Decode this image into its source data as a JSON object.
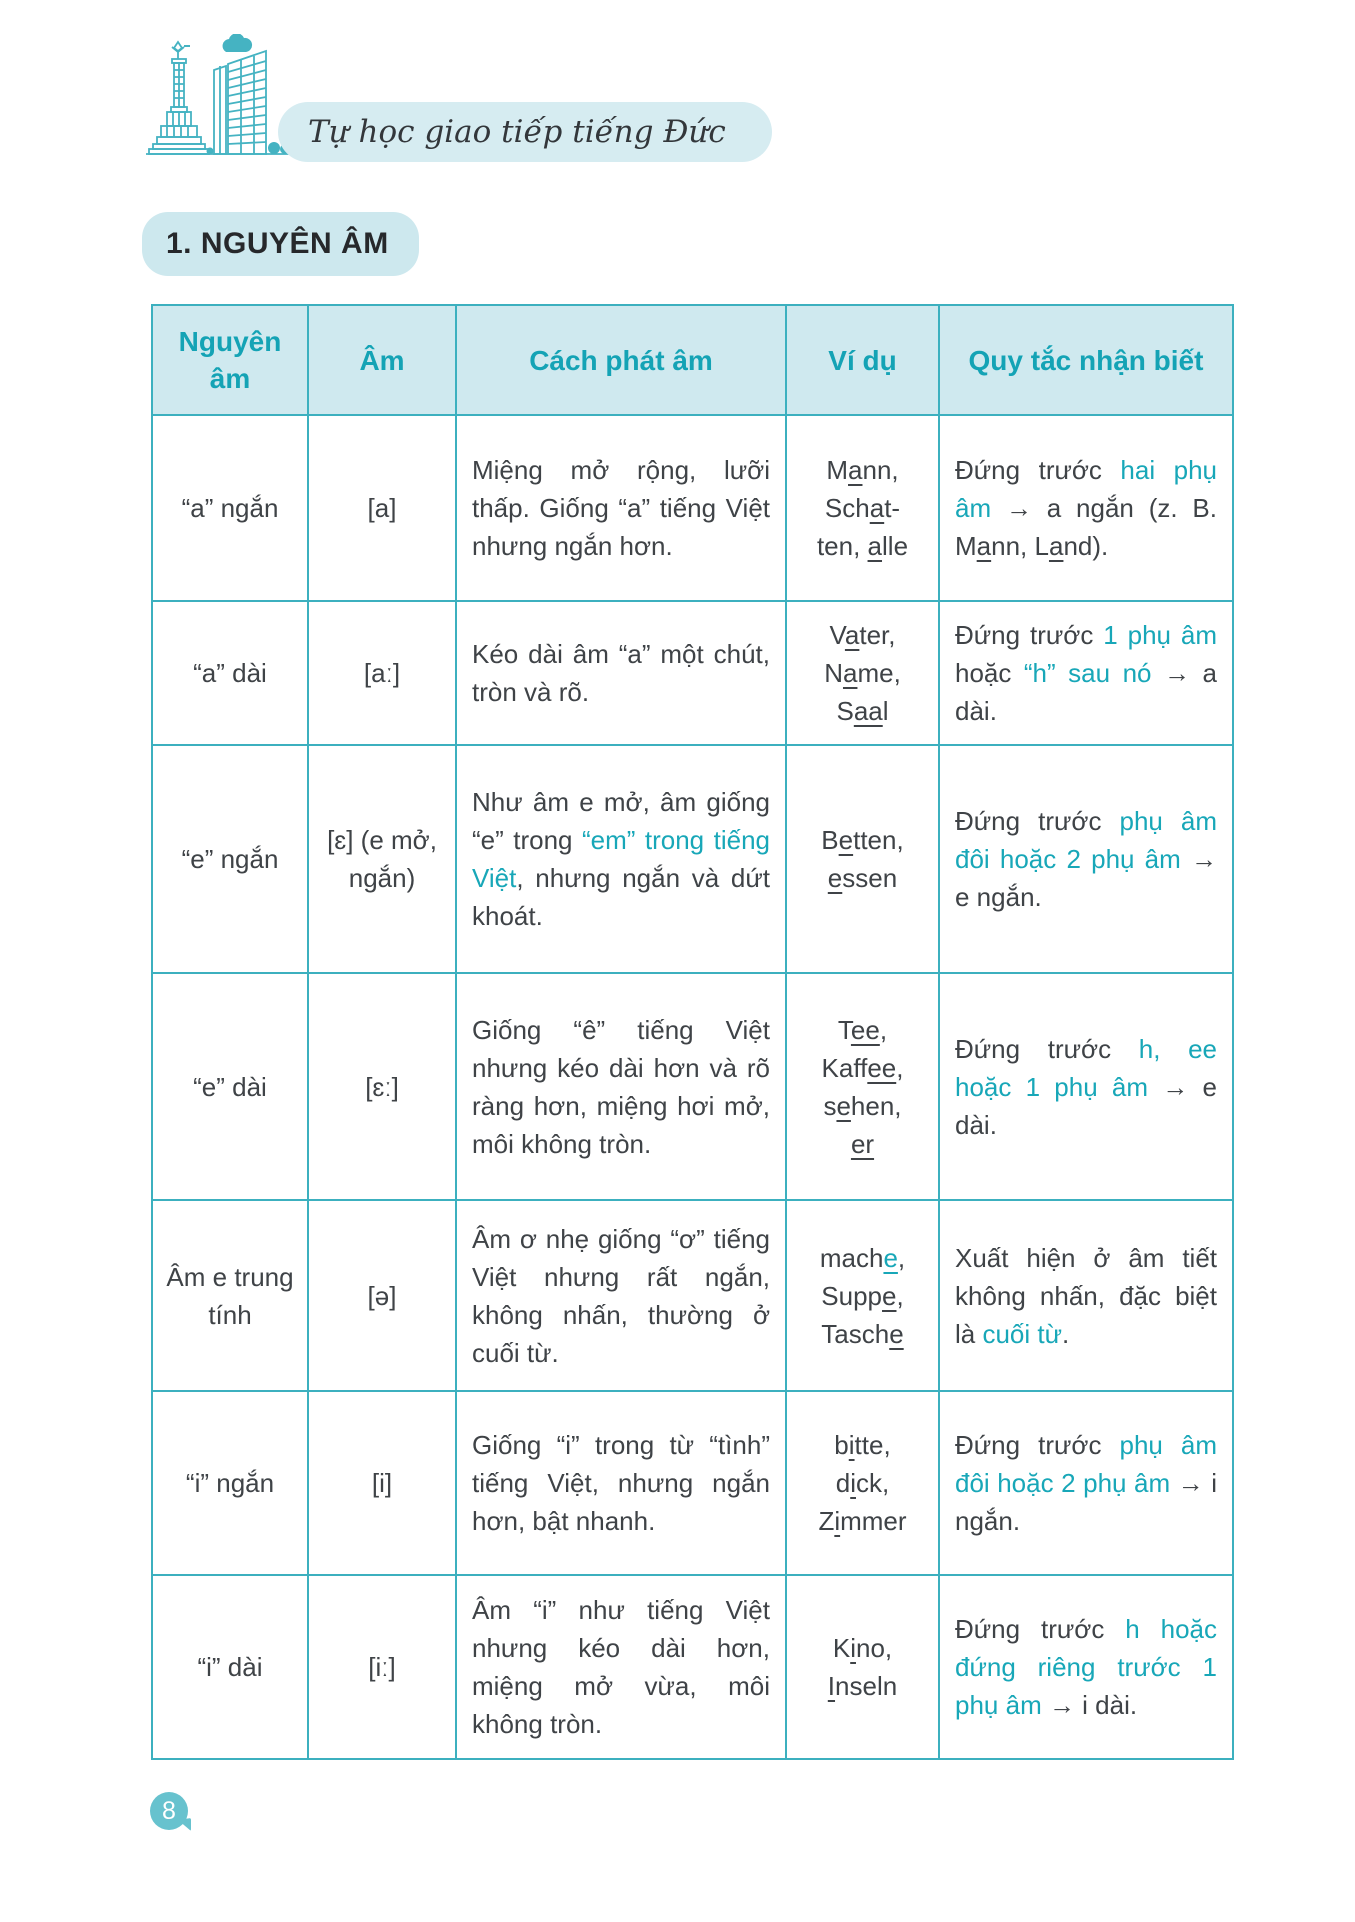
{
  "page": {
    "book_title": "Tự học giao tiếp tiếng Đức",
    "section_heading": "1. NGUYÊN ÂM",
    "page_number": "8"
  },
  "colors": {
    "accent_teal": "#18a7b8",
    "border_teal": "#3cb0bf",
    "header_bg": "#cfe9ef",
    "pill_bg": "#d6ecf1",
    "text_dark": "#3f4347",
    "ipa_gray": "#8f9396",
    "badge_bg": "#67c2ce"
  },
  "illustration": {
    "description": "berlin-victory-column-building-cloud",
    "stroke_color": "#45b3c2"
  },
  "table": {
    "columns": [
      "Nguyên âm",
      "Âm",
      "Cách phát âm",
      "Ví dụ",
      "Quy tắc nhận biết"
    ],
    "rows": [
      {
        "vowel": "“a” ngắn",
        "sound": [
          "[a]"
        ],
        "pronunciation": [
          [
            "Miệng mở rộng, lưỡi thấp. Giống “a” tiếng Việt nhưng ngắn hơn.",
            ""
          ]
        ],
        "examples": [
          [
            [
              "M",
              ""
            ],
            [
              "a",
              "u"
            ],
            [
              "nn,",
              ""
            ]
          ],
          [
            [
              "Sch",
              ""
            ],
            [
              "a",
              "u"
            ],
            [
              "t-",
              ""
            ]
          ],
          [
            [
              "ten, ",
              ""
            ],
            [
              "a",
              "u"
            ],
            [
              "lle",
              ""
            ]
          ]
        ],
        "rule": [
          [
            "Đứng trước ",
            ""
          ],
          [
            "hai phụ âm",
            "teal"
          ],
          [
            " → a ngắn (z. B. M",
            ""
          ],
          [
            "a",
            "u"
          ],
          [
            "nn, L",
            ""
          ],
          [
            "a",
            "u"
          ],
          [
            "nd).",
            ""
          ]
        ]
      },
      {
        "vowel": "“a” dài",
        "sound": [
          "[aː]"
        ],
        "pronunciation": [
          [
            "Kéo dài âm “a” một chút, tròn và rõ.",
            ""
          ]
        ],
        "examples": [
          [
            [
              "V",
              ""
            ],
            [
              "a",
              "u"
            ],
            [
              "ter,",
              ""
            ]
          ],
          [
            [
              "N",
              ""
            ],
            [
              "a",
              "u"
            ],
            [
              "me,",
              ""
            ]
          ],
          [
            [
              "S",
              ""
            ],
            [
              "aa",
              "u"
            ],
            [
              "l",
              ""
            ]
          ]
        ],
        "rule": [
          [
            "Đứng trước ",
            ""
          ],
          [
            "1 phụ âm",
            "teal"
          ],
          [
            " hoặc ",
            ""
          ],
          [
            "“h” sau nó",
            "teal"
          ],
          [
            " → a dài.",
            ""
          ]
        ]
      },
      {
        "vowel": "“e” ngắn",
        "sound": [
          "[ɛ] (e mở,",
          "ngắn)"
        ],
        "pronunciation": [
          [
            "Như âm e mở, âm giống “e” trong ",
            ""
          ],
          [
            "“em” trong tiếng Việt",
            "teal"
          ],
          [
            ", nhưng ngắn và dứt khoát.",
            ""
          ]
        ],
        "examples": [
          [
            [
              "B",
              ""
            ],
            [
              "e",
              "u"
            ],
            [
              "tten,",
              ""
            ]
          ],
          [
            [
              "e",
              "u"
            ],
            [
              "ssen",
              ""
            ]
          ]
        ],
        "rule": [
          [
            "Đứng trước ",
            ""
          ],
          [
            "phụ âm đôi hoặc 2 phụ âm",
            "teal"
          ],
          [
            " → e ngắn.",
            ""
          ]
        ]
      },
      {
        "vowel": "“e” dài",
        "sound": [
          "[ɛː]"
        ],
        "pronunciation": [
          [
            "Giống “ê” tiếng Việt nhưng kéo dài hơn và rõ ràng hơn, miệng hơi mở, môi không tròn.",
            ""
          ]
        ],
        "examples": [
          [
            [
              "T",
              ""
            ],
            [
              "ee",
              "u"
            ],
            [
              ",",
              ""
            ]
          ],
          [
            [
              "Kaff",
              ""
            ],
            [
              "ee",
              "u"
            ],
            [
              ",",
              ""
            ]
          ],
          [
            [
              "s",
              ""
            ],
            [
              "e",
              "u"
            ],
            [
              "hen,",
              ""
            ]
          ],
          [
            [
              "er",
              "u"
            ]
          ]
        ],
        "rule": [
          [
            "Đứng trước ",
            ""
          ],
          [
            "h, ee hoặc 1 phụ âm",
            "teal"
          ],
          [
            " → e dài.",
            ""
          ]
        ]
      },
      {
        "vowel": "Âm e trung tính",
        "sound": [
          "[ə]"
        ],
        "pronunciation": [
          [
            "Âm ơ nhẹ giống “ơ” tiếng Việt nhưng rất ngắn, không nhấn, thường ở cuối từ.",
            ""
          ]
        ],
        "examples": [
          [
            [
              "mach",
              ""
            ],
            [
              "e",
              "teal u"
            ],
            [
              ",",
              ""
            ]
          ],
          [
            [
              "Supp",
              ""
            ],
            [
              "e",
              "u"
            ],
            [
              ",",
              ""
            ]
          ],
          [
            [
              "Tasch",
              ""
            ],
            [
              "e",
              "u"
            ]
          ]
        ],
        "rule": [
          [
            "Xuất hiện ở âm tiết không nhấn, đặc biệt là ",
            ""
          ],
          [
            "cuối từ",
            "teal"
          ],
          [
            ".",
            ""
          ]
        ]
      },
      {
        "vowel": "“i” ngắn",
        "sound": [
          "[i]"
        ],
        "pronunciation": [
          [
            "Giống “i” trong từ “tình” tiếng Việt, nhưng ngắn hơn, bật nhanh.",
            ""
          ]
        ],
        "examples": [
          [
            [
              "b",
              ""
            ],
            [
              "i",
              "u"
            ],
            [
              "tte,",
              ""
            ]
          ],
          [
            [
              "d",
              ""
            ],
            [
              "i",
              "u"
            ],
            [
              "ck,",
              ""
            ]
          ],
          [
            [
              "Z",
              ""
            ],
            [
              "i",
              "u"
            ],
            [
              "mmer",
              ""
            ]
          ]
        ],
        "rule": [
          [
            "Đứng trước ",
            ""
          ],
          [
            "phụ âm đôi hoặc 2 phụ âm",
            "teal"
          ],
          [
            " → i ngắn.",
            ""
          ]
        ]
      },
      {
        "vowel": "“i” dài",
        "sound": [
          "[iː]"
        ],
        "pronunciation": [
          [
            "Âm “i” như tiếng Việt nhưng kéo dài hơn, miệng mở vừa, môi không tròn.",
            ""
          ]
        ],
        "examples": [
          [
            [
              "K",
              ""
            ],
            [
              "i",
              "u"
            ],
            [
              "no,",
              ""
            ]
          ],
          [
            [
              "I",
              "u"
            ],
            [
              "nseln",
              ""
            ]
          ]
        ],
        "rule": [
          [
            "Đứng trước ",
            ""
          ],
          [
            "h hoặc đứng riêng trước 1 phụ âm",
            "teal"
          ],
          [
            " → i dài.",
            ""
          ]
        ]
      }
    ]
  }
}
